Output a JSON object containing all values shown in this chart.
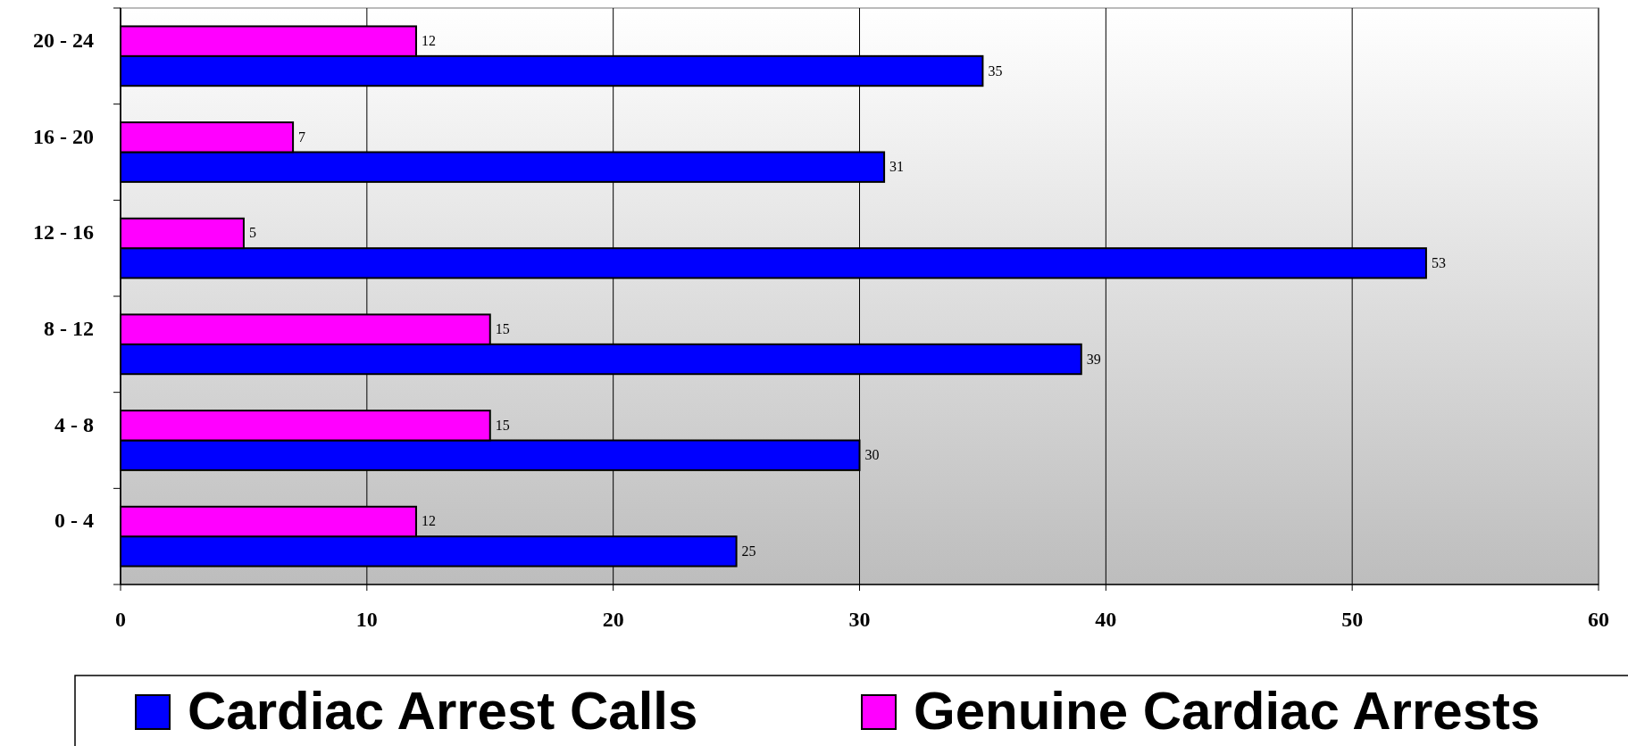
{
  "chart_data": {
    "type": "bar",
    "orientation": "horizontal",
    "categories": [
      "20 - 24",
      "16 - 20",
      "12 - 16",
      "8 - 12",
      "4 - 8",
      "0 - 4"
    ],
    "series": [
      {
        "name": "Cardiac Arrest Calls",
        "color": "#0000ff",
        "values": [
          35,
          31,
          53,
          39,
          30,
          25
        ]
      },
      {
        "name": "Genuine Cardiac Arrests",
        "color": "#ff00ff",
        "values": [
          12,
          7,
          5,
          15,
          15,
          12
        ]
      }
    ],
    "xlim": [
      0,
      60
    ],
    "xticks": [
      0,
      10,
      20,
      30,
      40,
      50,
      60
    ],
    "grid": "x",
    "legend": "bottom",
    "data_labels": true
  }
}
